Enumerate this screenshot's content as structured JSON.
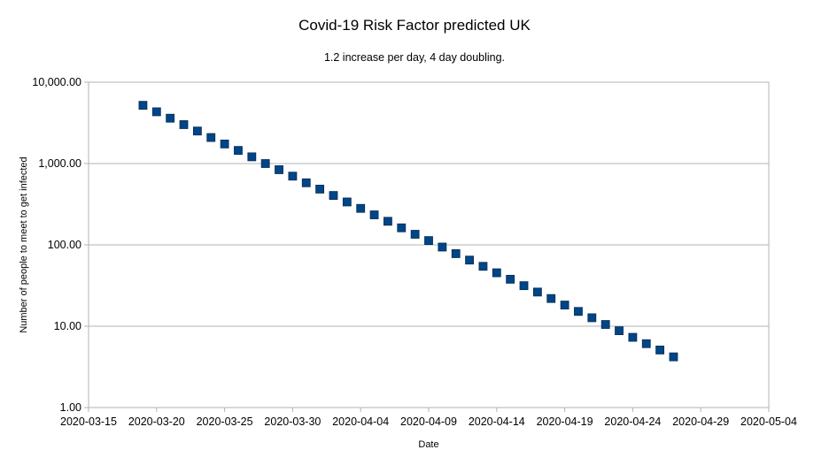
{
  "chart_data": {
    "type": "scatter",
    "title": "Covid-19 Risk Factor predicted UK",
    "subtitle": "1.2 increase per day, 4 day doubling.",
    "xlabel": "Date",
    "ylabel": "Number of people to meet to get infected",
    "y_scale": "log",
    "ylim": [
      1,
      10000
    ],
    "xlim": [
      "2020-03-15",
      "2020-05-04"
    ],
    "x_ticks": [
      "2020-03-15",
      "2020-03-20",
      "2020-03-25",
      "2020-03-30",
      "2020-04-04",
      "2020-04-09",
      "2020-04-14",
      "2020-04-19",
      "2020-04-24",
      "2020-04-29",
      "2020-05-04"
    ],
    "y_ticks": [
      1,
      10,
      100,
      1000,
      10000
    ],
    "y_tick_labels": [
      "1.00",
      "10.00",
      "100.00",
      "1,000.00",
      "10,000.00"
    ],
    "grid": "horizontal",
    "legend": "none",
    "marker_color": "#004586",
    "series": [
      {
        "x": [
          "2020-03-19",
          "2020-03-20",
          "2020-03-21",
          "2020-03-22",
          "2020-03-23",
          "2020-03-24",
          "2020-03-25",
          "2020-03-26",
          "2020-03-27",
          "2020-03-28",
          "2020-03-29",
          "2020-03-30",
          "2020-03-31",
          "2020-04-01",
          "2020-04-02",
          "2020-04-03",
          "2020-04-04",
          "2020-04-05",
          "2020-04-06",
          "2020-04-07",
          "2020-04-08",
          "2020-04-09",
          "2020-04-10",
          "2020-04-11",
          "2020-04-12",
          "2020-04-13",
          "2020-04-14",
          "2020-04-15",
          "2020-04-16",
          "2020-04-17",
          "2020-04-18",
          "2020-04-19",
          "2020-04-20",
          "2020-04-21",
          "2020-04-22",
          "2020-04-23",
          "2020-04-24",
          "2020-04-25",
          "2020-04-26",
          "2020-04-27"
        ],
        "y": [
          5200,
          4330,
          3610,
          3010,
          2510,
          2090,
          1740,
          1450,
          1210,
          1000,
          840,
          700,
          580,
          485,
          405,
          337,
          281,
          234,
          195,
          162,
          135,
          113,
          94,
          78,
          65,
          54.5,
          45.4,
          37.8,
          31.5,
          26.3,
          21.9,
          18.2,
          15.2,
          12.7,
          10.5,
          8.8,
          7.3,
          6.1,
          5.1,
          4.2
        ]
      }
    ]
  }
}
